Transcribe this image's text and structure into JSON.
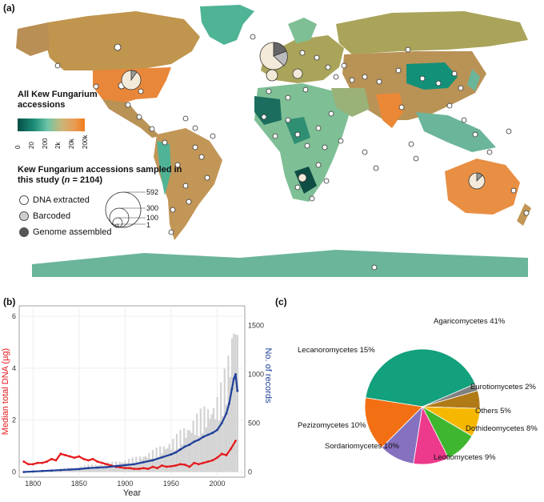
{
  "panel_labels": {
    "a": "(a)",
    "b": "(b)",
    "c": "(c)"
  },
  "map": {
    "legend_title": "All Kew Fungarium accessions",
    "colorbar_ticks": [
      "0",
      "20",
      "200",
      "2k",
      "20k",
      "200k"
    ],
    "sample_title_pre": "Kew Fungarium accessions sampled in this study (",
    "sample_title_n": "n",
    "sample_title_post": " = 2104)",
    "legend_items": [
      "DNA extracted",
      "Barcoded",
      "Genome assembled"
    ],
    "size_labels": [
      "592",
      "300",
      "100",
      "1"
    ],
    "colors": {
      "ocean": "#ffffff",
      "low": "#064e45",
      "mid": "#6fc4a6",
      "tan": "#c9b77a",
      "high": "#f07b1c"
    }
  },
  "chart_data": [
    {
      "type": "line",
      "ylabel": "Median total DNA (µg)",
      "y2label": "No. of records",
      "xlabel": "Year",
      "x_ticks": [
        "1800",
        "1850",
        "1900",
        "1950",
        "2000"
      ],
      "y_ticks": [
        "0",
        "2",
        "4",
        "6"
      ],
      "y2_ticks": [
        "0",
        "500",
        "1000",
        "1500"
      ],
      "xlim": [
        1785,
        2030
      ],
      "ylim": [
        -0.2,
        6.4
      ],
      "y2lim": [
        -53,
        1700
      ],
      "colors": {
        "dna": "#e41a1c",
        "records": "#1f3f9a",
        "bars": "#d3d3d3"
      },
      "series": [
        {
          "axis": "left",
          "x": [
            1790,
            1795,
            1800,
            1805,
            1810,
            1815,
            1820,
            1825,
            1830,
            1835,
            1840,
            1845,
            1850,
            1855,
            1860,
            1865,
            1870,
            1875,
            1880,
            1885,
            1890,
            1895,
            1900,
            1905,
            1910,
            1915,
            1920,
            1925,
            1930,
            1935,
            1940,
            1945,
            1950,
            1955,
            1960,
            1965,
            1970,
            1975,
            1980,
            1985,
            1990,
            1995,
            2000,
            2005,
            2010,
            2015,
            2020
          ],
          "values": [
            0.4,
            0.3,
            0.3,
            0.35,
            0.35,
            0.4,
            0.5,
            0.45,
            0.7,
            0.65,
            0.6,
            0.55,
            0.6,
            0.5,
            0.45,
            0.5,
            0.4,
            0.35,
            0.3,
            0.25,
            0.2,
            0.18,
            0.15,
            0.15,
            0.12,
            0.12,
            0.15,
            0.12,
            0.2,
            0.15,
            0.25,
            0.2,
            0.22,
            0.25,
            0.3,
            0.28,
            0.2,
            0.35,
            0.3,
            0.35,
            0.4,
            0.45,
            0.55,
            0.7,
            0.65,
            0.9,
            1.2
          ]
        },
        {
          "axis": "right",
          "x": [
            1790,
            1800,
            1810,
            1820,
            1830,
            1840,
            1850,
            1860,
            1870,
            1880,
            1890,
            1900,
            1910,
            1920,
            1930,
            1940,
            1950,
            1955,
            1960,
            1965,
            1970,
            1975,
            1980,
            1985,
            1990,
            1995,
            2000,
            2005,
            2010,
            2013,
            2016,
            2018,
            2020,
            2022
          ],
          "values": [
            0,
            5,
            10,
            15,
            20,
            25,
            30,
            40,
            45,
            50,
            60,
            70,
            80,
            100,
            120,
            150,
            180,
            200,
            230,
            260,
            280,
            310,
            330,
            360,
            380,
            400,
            430,
            500,
            600,
            700,
            850,
            950,
            1000,
            830
          ]
        }
      ]
    },
    {
      "type": "pie",
      "slices": [
        {
          "label": "Agaricomycetes 41%",
          "value": 41,
          "color": "#13a07c"
        },
        {
          "label": "Eurotiomycetes 2%",
          "value": 2,
          "color": "#7f7f7f"
        },
        {
          "label": "Others 5%",
          "value": 5,
          "color": "#b07a17"
        },
        {
          "label": "Dothideomycetes 8%",
          "value": 8,
          "color": "#f5b700"
        },
        {
          "label": "Leotiomycetes 9%",
          "value": 9,
          "color": "#3fb62f"
        },
        {
          "label": "Sordariomycetes 10%",
          "value": 10,
          "color": "#ee3a8c"
        },
        {
          "label": "Pezizomycetes 10%",
          "value": 10,
          "color": "#8571bf"
        },
        {
          "label": "Lecanoromycetes 15%",
          "value": 15,
          "color": "#f26f13"
        }
      ]
    }
  ]
}
